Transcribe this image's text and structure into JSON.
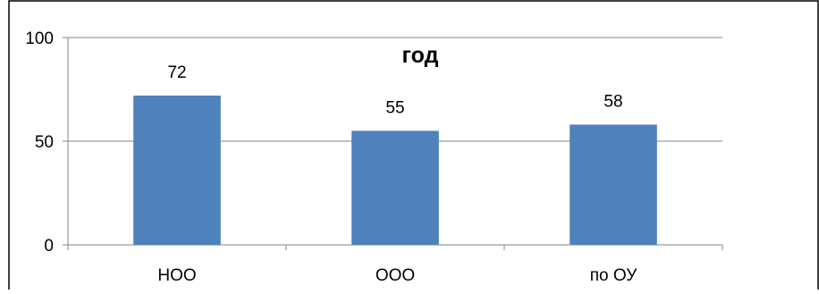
{
  "chart_data": {
    "type": "bar",
    "title": "год",
    "categories": [
      "НОО",
      "ООО",
      "по ОУ"
    ],
    "series": [
      {
        "values": [
          72,
          55,
          58
        ]
      }
    ],
    "data_labels": [
      "72",
      "55",
      "58"
    ],
    "y_ticks": [
      "0",
      "50",
      "100"
    ],
    "ylim": [
      0,
      100
    ],
    "xlabel": "",
    "ylabel": "",
    "grid": true,
    "legend": "none",
    "colors": {
      "bar": "#4f81bd",
      "grid": "#868686",
      "axis": "#868686",
      "text": "#000000",
      "border": "#000000"
    }
  }
}
